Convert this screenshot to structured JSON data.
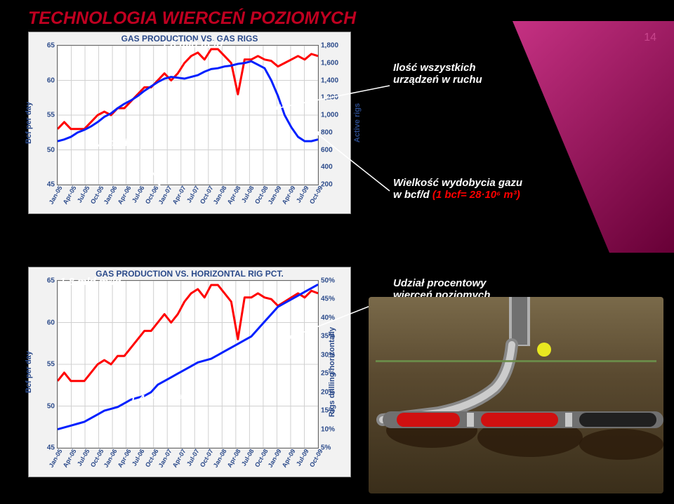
{
  "title": "TECHNOLOGIA WIERCEŃ POZIOMYCH",
  "page_number": "14",
  "colors": {
    "bg": "#000000",
    "title": "#c00020",
    "text": "#ffffff",
    "line_gas": "#ff0000",
    "line_rigs": "#0020ff",
    "axis_label": "#2b4a8a",
    "plot_bg": "#ffffff",
    "chart_bg": "#f2f2f2",
    "grid": "#d0d0d0"
  },
  "annotations": {
    "a1": "1,8 mld m³/d",
    "a2_l1": "Ilość wszystkich",
    "a2_l2": "urządzeń w ruchu",
    "a3": "1,4 mld m³/d",
    "a4_l1": "Wielkość wydobycia gazu",
    "a4_l2a": "w bcf/d ",
    "a4_l2b": "(1 bcf= 28·10⁶ m³)",
    "a5": "1,8 mld m³/d",
    "a6_l1": "Udział procentowy",
    "a6_l2": "wierceń poziomych",
    "a7": "1,4 mld m³/d"
  },
  "chart1": {
    "title": "GAS PRODUCTION VS. GAS RIGS",
    "y1_label": "Bcf per day",
    "y2_label": "Active rigs",
    "y1_ticks": [
      "45",
      "50",
      "55",
      "60",
      "65"
    ],
    "y1_range": [
      45,
      65
    ],
    "y2_ticks": [
      "200",
      "400",
      "600",
      "800",
      "1,000",
      "1,200",
      "1,400",
      "1,600",
      "1,800"
    ],
    "y2_range": [
      200,
      1800
    ],
    "x_ticks": [
      "Jan-05",
      "Apr-05",
      "Jul-05",
      "Oct-05",
      "Jan-06",
      "Apr-06",
      "Jul-06",
      "Oct-06",
      "Jan-07",
      "Apr-07",
      "Jul-07",
      "Oct-07",
      "Jan-08",
      "Apr-08",
      "Jul-08",
      "Oct-08",
      "Jan-09",
      "Apr-09",
      "Jul-09",
      "Oct-09"
    ],
    "series": {
      "gas": {
        "color": "#ff0000",
        "width": 3,
        "y": [
          53,
          54,
          53,
          53,
          53,
          54,
          55,
          55.5,
          55,
          56,
          56,
          57,
          58,
          59,
          59,
          60,
          61,
          60,
          61,
          62.5,
          63.5,
          64,
          63,
          64.5,
          64.5,
          63.5,
          62.5,
          58,
          63,
          63,
          63.5,
          63,
          62.8,
          62,
          62.5,
          63,
          63.5,
          63,
          63.8,
          63.5
        ]
      },
      "rigs": {
        "color": "#0020ff",
        "width": 3,
        "y": [
          700,
          720,
          750,
          800,
          830,
          870,
          920,
          980,
          1020,
          1080,
          1130,
          1170,
          1220,
          1280,
          1330,
          1380,
          1420,
          1440,
          1430,
          1420,
          1440,
          1460,
          1500,
          1530,
          1540,
          1560,
          1570,
          1590,
          1600,
          1620,
          1580,
          1540,
          1400,
          1220,
          1000,
          860,
          750,
          700,
          700,
          720
        ]
      }
    }
  },
  "chart2": {
    "title": "GAS PRODUCTION VS. HORIZONTAL RIG PCT.",
    "y1_label": "Bcf per day",
    "y2_label": "Rigs drilling horizontally",
    "y1_ticks": [
      "45",
      "50",
      "55",
      "60",
      "65"
    ],
    "y1_range": [
      45,
      65
    ],
    "y2_ticks": [
      "5%",
      "10%",
      "15%",
      "20%",
      "25%",
      "30%",
      "35%",
      "40%",
      "45%",
      "50%"
    ],
    "y2_range": [
      5,
      50
    ],
    "x_ticks": [
      "Jan-05",
      "Apr-05",
      "Jul-05",
      "Oct-05",
      "Jan-06",
      "Apr-06",
      "Jul-06",
      "Oct-06",
      "Jan-07",
      "Apr-07",
      "Jul-07",
      "Oct-07",
      "Jan-08",
      "Apr-08",
      "Jul-08",
      "Oct-08",
      "Jan-09",
      "Apr-09",
      "Jul-09",
      "Oct-09"
    ],
    "series": {
      "gas": {
        "color": "#ff0000",
        "width": 3,
        "y": [
          53,
          54,
          53,
          53,
          53,
          54,
          55,
          55.5,
          55,
          56,
          56,
          57,
          58,
          59,
          59,
          60,
          61,
          60,
          61,
          62.5,
          63.5,
          64,
          63,
          64.5,
          64.5,
          63.5,
          62.5,
          58,
          63,
          63,
          63.5,
          63,
          62.8,
          62,
          62.5,
          63,
          63.5,
          63,
          63.8,
          63.5
        ]
      },
      "pct": {
        "color": "#0020ff",
        "width": 3,
        "y": [
          10,
          10.5,
          11,
          11.5,
          12,
          13,
          14,
          15,
          15.5,
          16,
          17,
          18,
          18.5,
          19,
          20,
          22,
          23,
          24,
          25,
          26,
          27,
          28,
          28.5,
          29,
          30,
          31,
          32,
          33,
          34,
          35,
          37,
          39,
          41,
          43,
          44,
          45,
          46,
          47,
          48,
          49
        ]
      }
    }
  }
}
